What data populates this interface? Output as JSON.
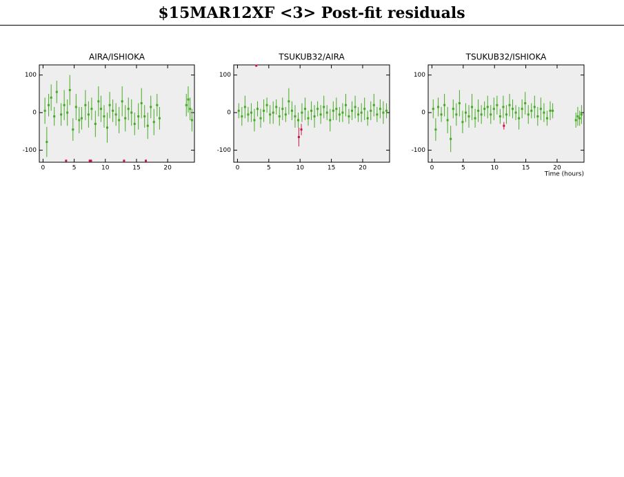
{
  "title": "$15MAR12XF <3> Post-fit residuals",
  "chart_data": [
    {
      "type": "scatter",
      "title": "AIRA/ISHIOKA",
      "xlim": [
        -0.6,
        24.3
      ],
      "ylim": [
        -132,
        127
      ],
      "xticks": [
        0,
        5,
        10,
        15,
        20
      ],
      "yticks": [
        -100,
        0,
        100
      ],
      "background": "#eeeeee",
      "series": [
        {
          "color": "#44aa22",
          "x": [
            0.3,
            0.6,
            0.9,
            1.3,
            1.8,
            2.2,
            2.9,
            3.4,
            3.9,
            4.3,
            4.8,
            5.3,
            5.8,
            6.2,
            6.8,
            7.3,
            7.8,
            8.4,
            8.9,
            9.3,
            9.8,
            10.3,
            10.7,
            11.2,
            11.7,
            12.2,
            12.7,
            13.2,
            13.7,
            14.2,
            14.7,
            15.3,
            15.8,
            16.3,
            16.8,
            17.3,
            17.8,
            18.3,
            18.7,
            23.0,
            23.3,
            23.6,
            23.9
          ],
          "values": [
            5,
            -78,
            20,
            40,
            -10,
            55,
            -5,
            20,
            0,
            60,
            -45,
            15,
            -20,
            -15,
            20,
            -5,
            10,
            -30,
            30,
            10,
            -10,
            -40,
            20,
            5,
            -5,
            -20,
            30,
            -15,
            10,
            0,
            -30,
            -10,
            25,
            -10,
            -35,
            15,
            -25,
            20,
            -15,
            20,
            35,
            10,
            -20
          ],
          "errors": [
            35,
            40,
            30,
            35,
            25,
            30,
            30,
            40,
            35,
            40,
            30,
            35,
            35,
            30,
            40,
            35,
            30,
            35,
            40,
            35,
            30,
            40,
            35,
            30,
            30,
            35,
            40,
            35,
            30,
            35,
            30,
            35,
            40,
            30,
            35,
            30,
            35,
            30,
            30,
            30,
            35,
            30,
            30
          ]
        },
        {
          "color": "#cc1144",
          "x": [
            3.7,
            7.5,
            7.7,
            13.0,
            16.5
          ],
          "values": [
            -128,
            -128,
            -128,
            -128,
            -128
          ]
        }
      ]
    },
    {
      "type": "scatter",
      "title": "TSUKUB32/AIRA",
      "xlim": [
        -0.6,
        24.3
      ],
      "ylim": [
        -132,
        127
      ],
      "xticks": [
        0,
        5,
        10,
        15,
        20
      ],
      "yticks": [
        -100,
        0,
        100
      ],
      "background": "#eeeeee",
      "series": [
        {
          "color": "#44aa22",
          "x": [
            0.2,
            0.7,
            1.2,
            1.7,
            2.2,
            2.7,
            3.2,
            3.7,
            4.2,
            4.7,
            5.2,
            5.7,
            6.2,
            6.7,
            7.2,
            7.7,
            8.2,
            8.7,
            9.2,
            9.7,
            10.3,
            10.8,
            11.3,
            11.8,
            12.3,
            12.8,
            13.3,
            13.8,
            14.3,
            14.8,
            15.3,
            15.8,
            16.3,
            16.8,
            17.3,
            17.8,
            18.3,
            18.8,
            19.3,
            19.8,
            20.3,
            20.8,
            21.3,
            21.8,
            22.3,
            22.8,
            23.3,
            23.8
          ],
          "values": [
            5,
            -10,
            15,
            -5,
            0,
            -20,
            10,
            -15,
            5,
            20,
            -5,
            0,
            15,
            -10,
            10,
            -5,
            30,
            5,
            -10,
            -20,
            0,
            10,
            -15,
            5,
            -10,
            10,
            -5,
            15,
            0,
            -20,
            5,
            10,
            -5,
            0,
            20,
            -10,
            5,
            15,
            -5,
            0,
            10,
            -15,
            5,
            20,
            -5,
            10,
            0,
            5
          ],
          "errors": [
            20,
            25,
            30,
            20,
            25,
            30,
            20,
            25,
            30,
            20,
            25,
            30,
            20,
            25,
            30,
            20,
            35,
            25,
            30,
            20,
            25,
            30,
            20,
            25,
            30,
            20,
            25,
            30,
            20,
            30,
            25,
            30,
            20,
            25,
            30,
            20,
            25,
            30,
            20,
            25,
            30,
            20,
            25,
            30,
            20,
            25,
            30,
            20
          ]
        },
        {
          "color": "#cc1144",
          "x": [
            3.0,
            9.8,
            10.2
          ],
          "values": [
            125,
            -65,
            -45
          ],
          "errors": [
            null,
            25,
            15
          ]
        }
      ]
    },
    {
      "type": "scatter",
      "title": "TSUKUB32/ISHIOKA",
      "xlabel": "Time (hours)",
      "xlim": [
        -0.6,
        24.3
      ],
      "ylim": [
        -132,
        127
      ],
      "xticks": [
        0,
        5,
        10,
        15,
        20
      ],
      "yticks": [
        -100,
        0,
        100
      ],
      "background": "#eeeeee",
      "series": [
        {
          "color": "#44aa22",
          "x": [
            0.2,
            0.6,
            1.0,
            1.5,
            2.0,
            2.5,
            3.0,
            3.4,
            3.9,
            4.4,
            4.9,
            5.4,
            5.9,
            6.4,
            6.9,
            7.4,
            7.9,
            8.4,
            8.9,
            9.4,
            9.9,
            10.4,
            10.9,
            11.4,
            11.9,
            12.4,
            12.9,
            13.4,
            13.9,
            14.4,
            14.9,
            15.4,
            15.9,
            16.4,
            16.9,
            17.4,
            17.9,
            18.4,
            18.9,
            19.3,
            23.0,
            23.3,
            23.6,
            23.9
          ],
          "values": [
            10,
            -45,
            15,
            -5,
            20,
            -20,
            -70,
            10,
            -5,
            25,
            -25,
            0,
            -10,
            15,
            -15,
            5,
            -5,
            10,
            15,
            -5,
            10,
            20,
            -10,
            15,
            -5,
            20,
            10,
            0,
            -15,
            10,
            25,
            -5,
            5,
            15,
            -10,
            10,
            0,
            -15,
            5,
            5,
            -20,
            -10,
            -15,
            -5
          ],
          "errors": [
            25,
            30,
            25,
            20,
            30,
            35,
            35,
            25,
            30,
            35,
            30,
            25,
            30,
            35,
            25,
            30,
            25,
            20,
            30,
            25,
            30,
            25,
            20,
            30,
            25,
            30,
            25,
            20,
            30,
            25,
            30,
            25,
            20,
            30,
            25,
            30,
            25,
            20,
            25,
            20,
            20,
            25,
            20,
            25
          ]
        },
        {
          "color": "#cc1144",
          "x": [
            11.5
          ],
          "values": [
            -35
          ],
          "errors": [
            10
          ]
        }
      ]
    }
  ]
}
